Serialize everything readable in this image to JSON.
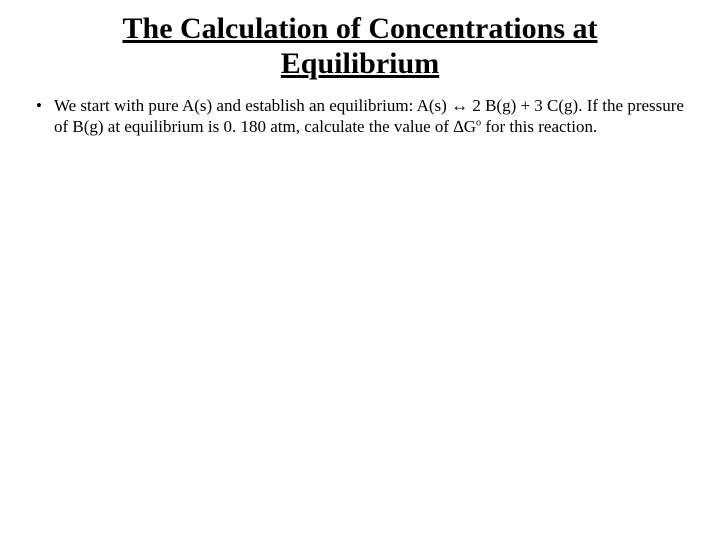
{
  "title_line1": "The Calculation of Concentrations at",
  "title_line2": "Equilibrium",
  "bullet": {
    "marker": "•",
    "part1": "We start with pure A(s) and establish an equilibrium:   A(s) ↔ 2 B(g) + 3 C(g). If the pressure of B(g) at equilibrium is 0. 180 atm, calculate the value of ∆G",
    "super": "o",
    "part2": " for this reaction."
  },
  "colors": {
    "background": "#ffffff",
    "text": "#000000"
  },
  "typography": {
    "title_fontsize": 30,
    "body_fontsize": 17,
    "font_family": "Times New Roman"
  }
}
